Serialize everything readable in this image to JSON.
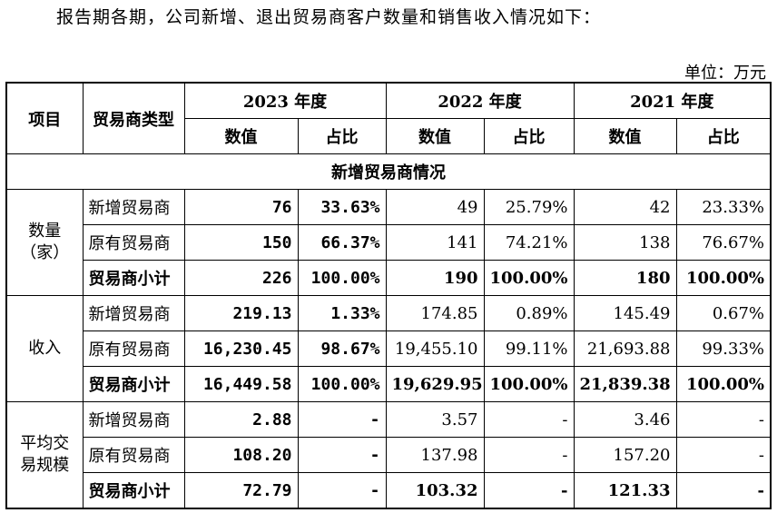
{
  "intro": "报告期各期，公司新增、退出贸易商客户数量和销售收入情况如下：",
  "unit": "单位：万元",
  "header": {
    "item": "项目",
    "type": "贸易商类型",
    "years": [
      "2023 年度",
      "2022 年度",
      "2021 年度"
    ],
    "value": "数值",
    "ratio": "占比"
  },
  "section_title": "新增贸易商情况",
  "groups": [
    {
      "label": "数量（家）",
      "rows": [
        {
          "type": "新增贸易商",
          "v2023": "76",
          "p2023": "33.63%",
          "v2022": "49",
          "p2022": "25.79%",
          "v2021": "42",
          "p2021": "23.33%"
        },
        {
          "type": "原有贸易商",
          "v2023": "150",
          "p2023": "66.37%",
          "v2022": "141",
          "p2022": "74.21%",
          "v2021": "138",
          "p2021": "76.67%"
        },
        {
          "type": "贸易商小计",
          "v2023": "226",
          "p2023": "100.00%",
          "v2022": "190",
          "p2022": "100.00%",
          "v2021": "180",
          "p2021": "100.00%"
        }
      ]
    },
    {
      "label": "收入",
      "rows": [
        {
          "type": "新增贸易商",
          "v2023": "219.13",
          "p2023": "1.33%",
          "v2022": "174.85",
          "p2022": "0.89%",
          "v2021": "145.49",
          "p2021": "0.67%"
        },
        {
          "type": "原有贸易商",
          "v2023": "16,230.45",
          "p2023": "98.67%",
          "v2022": "19,455.10",
          "p2022": "99.11%",
          "v2021": "21,693.88",
          "p2021": "99.33%"
        },
        {
          "type": "贸易商小计",
          "v2023": "16,449.58",
          "p2023": "100.00%",
          "v2022": "19,629.95",
          "p2022": "100.00%",
          "v2021": "21,839.38",
          "p2021": "100.00%"
        }
      ]
    },
    {
      "label": "平均交易规模",
      "rows": [
        {
          "type": "新增贸易商",
          "v2023": "2.88",
          "p2023": "-",
          "v2022": "3.57",
          "p2022": "-",
          "v2021": "3.46",
          "p2021": "-"
        },
        {
          "type": "原有贸易商",
          "v2023": "108.20",
          "p2023": "-",
          "v2022": "137.98",
          "p2022": "-",
          "v2021": "157.20",
          "p2021": "-"
        },
        {
          "type": "贸易商小计",
          "v2023": "72.79",
          "p2023": "-",
          "v2022": "103.32",
          "p2022": "-",
          "v2021": "121.33",
          "p2021": "-"
        }
      ]
    }
  ]
}
